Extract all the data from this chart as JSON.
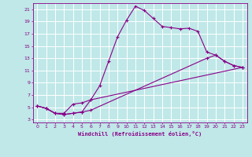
{
  "xlabel": "Windchill (Refroidissement éolien,°C)",
  "bg_color": "#c0e8e8",
  "grid_color": "#ffffff",
  "line_color": "#880088",
  "xlim": [
    -0.5,
    23.5
  ],
  "ylim": [
    2.5,
    22
  ],
  "xticks": [
    0,
    1,
    2,
    3,
    4,
    5,
    6,
    7,
    8,
    9,
    10,
    11,
    12,
    13,
    14,
    15,
    16,
    17,
    18,
    19,
    20,
    21,
    22,
    23
  ],
  "yticks": [
    3,
    5,
    7,
    9,
    11,
    13,
    15,
    17,
    19,
    21
  ],
  "curve1_x": [
    0,
    1,
    2,
    3,
    4,
    5,
    6,
    7,
    8,
    9,
    10,
    11,
    12,
    13,
    14,
    15,
    16,
    17,
    18,
    19,
    20,
    21,
    22,
    23
  ],
  "curve1_y": [
    5.2,
    4.8,
    4.0,
    3.8,
    4.0,
    4.2,
    6.2,
    8.5,
    12.5,
    16.5,
    19.2,
    21.5,
    20.8,
    19.5,
    18.2,
    18.0,
    17.8,
    17.9,
    17.4,
    14.0,
    13.5,
    12.5,
    11.8,
    11.5
  ],
  "curve2_x": [
    0,
    1,
    2,
    3,
    4,
    5,
    6,
    23
  ],
  "curve2_y": [
    5.2,
    4.8,
    4.0,
    4.0,
    5.5,
    5.7,
    6.2,
    11.5
  ],
  "curve3_x": [
    0,
    1,
    2,
    3,
    4,
    5,
    6,
    19,
    20,
    21,
    22,
    23
  ],
  "curve3_y": [
    5.2,
    4.8,
    4.0,
    3.8,
    4.0,
    4.2,
    4.5,
    13.0,
    13.5,
    12.5,
    11.8,
    11.5
  ],
  "marker": "+",
  "markersize": 3.5,
  "linewidth": 0.8
}
